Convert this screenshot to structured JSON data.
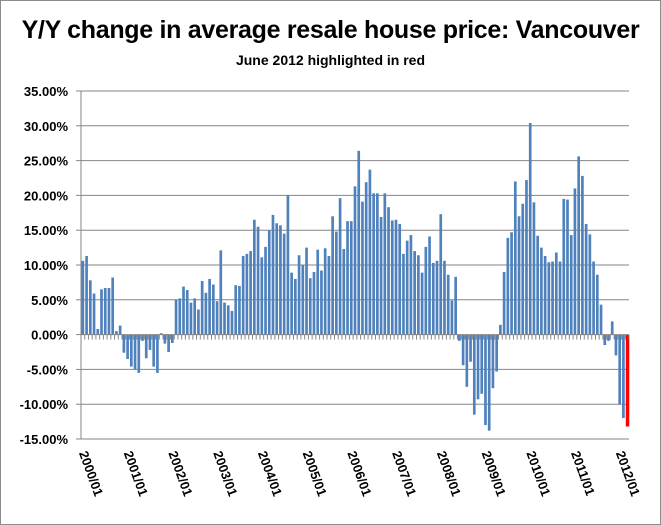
{
  "chart_data": {
    "type": "bar",
    "title": "Y/Y change in average resale house price: Vancouver",
    "subtitle": "June 2012 highlighted in red",
    "xlabel": "",
    "ylabel": "",
    "ylim": [
      -15,
      35
    ],
    "y_ticks": [
      "35.00%",
      "30.00%",
      "25.00%",
      "20.00%",
      "15.00%",
      "10.00%",
      "5.00%",
      "0.00%",
      "-5.00%",
      "-10.00%",
      "-15.00%"
    ],
    "y_tick_values": [
      35,
      30,
      25,
      20,
      15,
      10,
      5,
      0,
      -5,
      -10,
      -15
    ],
    "x_ticks": [
      "2000/01",
      "2001/01",
      "2002/01",
      "2003/01",
      "2004/01",
      "2005/01",
      "2006/01",
      "2007/01",
      "2008/01",
      "2009/01",
      "2010/01",
      "2011/01",
      "2012/01"
    ],
    "grid": true,
    "start": "2000/01",
    "end": "2012/06",
    "highlight": {
      "label": "2012/06",
      "color": "#ff0000"
    },
    "bar_color": "#4f81bd",
    "values": [
      10.6,
      11.3,
      7.8,
      5.9,
      0.8,
      6.5,
      6.7,
      6.7,
      8.2,
      0.5,
      1.3,
      -2.6,
      -3.5,
      -4.6,
      -5.0,
      -5.5,
      -0.9,
      -3.4,
      -2.2,
      -4.6,
      -5.5,
      0.2,
      -1.3,
      -2.5,
      -1.2,
      5.0,
      5.2,
      6.9,
      6.4,
      4.6,
      5.2,
      3.6,
      7.7,
      6.0,
      8.0,
      7.2,
      4.8,
      12.1,
      4.6,
      4.2,
      3.4,
      7.1,
      7.0,
      11.3,
      11.6,
      12.0,
      16.5,
      15.5,
      11.1,
      12.6,
      15.0,
      17.2,
      16.0,
      15.7,
      14.5,
      20.0,
      8.9,
      8.0,
      11.4,
      10.0,
      12.5,
      8.1,
      9.0,
      12.2,
      9.2,
      12.4,
      11.3,
      17.0,
      14.8,
      19.6,
      12.3,
      16.3,
      16.3,
      21.3,
      26.4,
      19.1,
      21.9,
      23.7,
      20.3,
      20.3,
      16.9,
      20.3,
      18.3,
      16.4,
      16.5,
      15.9,
      11.6,
      13.5,
      14.3,
      12.0,
      11.4,
      8.9,
      12.6,
      14.1,
      10.3,
      10.6,
      17.3,
      10.6,
      8.6,
      4.9,
      8.3,
      -0.9,
      -4.4,
      -7.5,
      -3.9,
      -11.5,
      -9.3,
      -8.5,
      -13.0,
      -13.8,
      -7.7,
      -5.3,
      1.4,
      9.0,
      13.9,
      14.7,
      22.0,
      17.0,
      18.8,
      22.2,
      30.4,
      19.0,
      14.2,
      12.5,
      11.3,
      10.4,
      10.5,
      11.8,
      10.5,
      19.5,
      19.4,
      14.3,
      21.0,
      25.6,
      22.8,
      15.9,
      14.4,
      10.5,
      8.6,
      4.3,
      -1.5,
      -0.9,
      1.9,
      -3.0,
      -10.0,
      -12.0,
      -13.2
    ]
  }
}
